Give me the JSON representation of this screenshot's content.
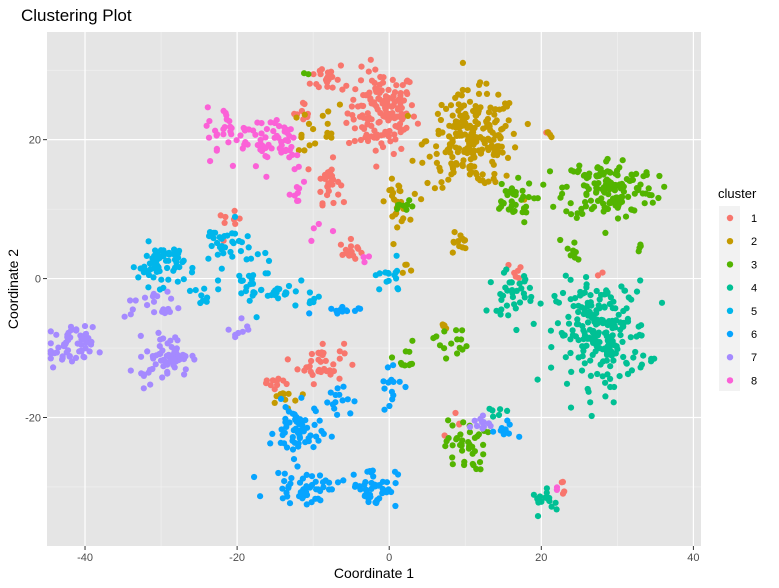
{
  "chart_data": {
    "type": "scatter",
    "title": "Clustering Plot",
    "xlabel": "Coordinate 1",
    "ylabel": "Coordinate 2",
    "xlim": [
      -45,
      41
    ],
    "ylim": [
      -38.5,
      35.5
    ],
    "x_ticks": [
      -40,
      -20,
      0,
      20,
      40
    ],
    "y_ticks": [
      -20,
      0,
      20
    ],
    "x_tick_labels": [
      "-40",
      "-20",
      "0",
      "20",
      "40"
    ],
    "y_tick_labels": [
      "-20",
      "0",
      "20"
    ],
    "grid": true,
    "background": "#e5e5e5",
    "legend": {
      "title": "cluster",
      "position": "right"
    },
    "series": [
      {
        "name": "1",
        "color": "#F8766D",
        "clusters": [
          {
            "center": [
              -1,
              24
            ],
            "spread": [
              3,
              4
            ],
            "n": 150
          },
          {
            "center": [
              -8,
              29
            ],
            "spread": [
              1.5,
              1.5
            ],
            "n": 20
          },
          {
            "center": [
              -8,
              14
            ],
            "spread": [
              1,
              2
            ],
            "n": 30
          },
          {
            "center": [
              -5,
              4
            ],
            "spread": [
              1,
              1
            ],
            "n": 15
          },
          {
            "center": [
              -9,
              -12
            ],
            "spread": [
              2,
              2
            ],
            "n": 35
          },
          {
            "center": [
              -11,
              24
            ],
            "spread": [
              1,
              1
            ],
            "n": 8
          },
          {
            "center": [
              -21,
              8
            ],
            "spread": [
              1,
              1
            ],
            "n": 8
          },
          {
            "center": [
              -15,
              -15
            ],
            "spread": [
              1.5,
              1
            ],
            "n": 10
          },
          {
            "center": [
              17,
              1
            ],
            "spread": [
              1,
              1
            ],
            "n": 6
          },
          {
            "center": [
              23,
              -29
            ],
            "spread": [
              0.5,
              1
            ],
            "n": 4
          },
          {
            "center": [
              8,
              -21
            ],
            "spread": [
              1,
              1
            ],
            "n": 4
          },
          {
            "center": [
              28,
              0.5
            ],
            "spread": [
              0.5,
              0.5
            ],
            "n": 2
          },
          {
            "center": [
              21,
              20.5
            ],
            "spread": [
              0.5,
              0.5
            ],
            "n": 2
          }
        ]
      },
      {
        "name": "2",
        "color": "#C49A00",
        "clusters": [
          {
            "center": [
              11,
              20
            ],
            "spread": [
              4,
              4.5
            ],
            "n": 220
          },
          {
            "center": [
              1,
              11
            ],
            "spread": [
              1,
              2
            ],
            "n": 25
          },
          {
            "center": [
              9,
              5
            ],
            "spread": [
              1,
              1.5
            ],
            "n": 12
          },
          {
            "center": [
              -11,
              21
            ],
            "spread": [
              1,
              2
            ],
            "n": 10
          },
          {
            "center": [
              -14,
              -17
            ],
            "spread": [
              1.5,
              1
            ],
            "n": 10
          },
          {
            "center": [
              -8,
              22
            ],
            "spread": [
              1,
              2
            ],
            "n": 8
          },
          {
            "center": [
              7,
              -7
            ],
            "spread": [
              0.5,
              1
            ],
            "n": 4
          },
          {
            "center": [
              2,
              1
            ],
            "spread": [
              0.8,
              0.8
            ],
            "n": 4
          },
          {
            "center": [
              21,
              20.5
            ],
            "spread": [
              0.5,
              0.5
            ],
            "n": 3
          }
        ]
      },
      {
        "name": "3",
        "color": "#53B400",
        "clusters": [
          {
            "center": [
              29,
              13
            ],
            "spread": [
              4,
              3
            ],
            "n": 150
          },
          {
            "center": [
              16,
              11
            ],
            "spread": [
              2,
              2
            ],
            "n": 35
          },
          {
            "center": [
              10,
              -24
            ],
            "spread": [
              1.8,
              2.5
            ],
            "n": 40
          },
          {
            "center": [
              8,
              -9
            ],
            "spread": [
              1.5,
              1.5
            ],
            "n": 15
          },
          {
            "center": [
              2,
              -12
            ],
            "spread": [
              1,
              2
            ],
            "n": 10
          },
          {
            "center": [
              24,
              4
            ],
            "spread": [
              1,
              1.5
            ],
            "n": 10
          },
          {
            "center": [
              2,
              10
            ],
            "spread": [
              1,
              0.8
            ],
            "n": 8
          },
          {
            "center": [
              -11,
              29.5
            ],
            "spread": [
              0.5,
              0.5
            ],
            "n": 2
          },
          {
            "center": [
              33,
              5
            ],
            "spread": [
              0.5,
              1
            ],
            "n": 4
          }
        ]
      },
      {
        "name": "4",
        "color": "#00C094",
        "clusters": [
          {
            "center": [
              28,
              -8
            ],
            "spread": [
              4,
              5
            ],
            "n": 220
          },
          {
            "center": [
              16,
              -2
            ],
            "spread": [
              2,
              2
            ],
            "n": 35
          },
          {
            "center": [
              21,
              -32
            ],
            "spread": [
              1.5,
              1
            ],
            "n": 15
          },
          {
            "center": [
              14,
              -19
            ],
            "spread": [
              1,
              1
            ],
            "n": 6
          }
        ]
      },
      {
        "name": "5",
        "color": "#00B6EB",
        "clusters": [
          {
            "center": [
              -30,
              2
            ],
            "spread": [
              2,
              2
            ],
            "n": 70
          },
          {
            "center": [
              -22,
              5
            ],
            "spread": [
              2,
              2
            ],
            "n": 30
          },
          {
            "center": [
              -18,
              0
            ],
            "spread": [
              2,
              3
            ],
            "n": 25
          },
          {
            "center": [
              -14,
              -2
            ],
            "spread": [
              2,
              1
            ],
            "n": 20
          },
          {
            "center": [
              0,
              0
            ],
            "spread": [
              1.5,
              1.5
            ],
            "n": 15
          },
          {
            "center": [
              -25,
              -3
            ],
            "spread": [
              2,
              2
            ],
            "n": 10
          },
          {
            "center": [
              -10,
              -3
            ],
            "spread": [
              1,
              1
            ],
            "n": 6
          }
        ]
      },
      {
        "name": "6",
        "color": "#06A4FF",
        "clusters": [
          {
            "center": [
              -12,
              -22
            ],
            "spread": [
              2,
              2.5
            ],
            "n": 60
          },
          {
            "center": [
              -11,
              -30
            ],
            "spread": [
              3,
              1.5
            ],
            "n": 50
          },
          {
            "center": [
              -2,
              -30
            ],
            "spread": [
              2,
              2
            ],
            "n": 45
          },
          {
            "center": [
              -7,
              -17
            ],
            "spread": [
              1.5,
              1.5
            ],
            "n": 15
          },
          {
            "center": [
              -7,
              -5
            ],
            "spread": [
              2,
              0.8
            ],
            "n": 12
          },
          {
            "center": [
              0,
              -15
            ],
            "spread": [
              1,
              3
            ],
            "n": 15
          },
          {
            "center": [
              15,
              -22
            ],
            "spread": [
              1,
              1
            ],
            "n": 10
          }
        ]
      },
      {
        "name": "7",
        "color": "#A58AFF",
        "clusters": [
          {
            "center": [
              -42,
              -10
            ],
            "spread": [
              2,
              2
            ],
            "n": 55
          },
          {
            "center": [
              -29,
              -11
            ],
            "spread": [
              2,
              2
            ],
            "n": 60
          },
          {
            "center": [
              -31,
              -4
            ],
            "spread": [
              2.5,
              1.5
            ],
            "n": 20
          },
          {
            "center": [
              -32,
              -14
            ],
            "spread": [
              1,
              1
            ],
            "n": 6
          },
          {
            "center": [
              -20,
              -7
            ],
            "spread": [
              1,
              1.5
            ],
            "n": 8
          },
          {
            "center": [
              12,
              -21
            ],
            "spread": [
              1,
              0.8
            ],
            "n": 12
          }
        ]
      },
      {
        "name": "8",
        "color": "#FB61D7",
        "clusters": [
          {
            "center": [
              -15,
              20
            ],
            "spread": [
              3,
              3
            ],
            "n": 55
          },
          {
            "center": [
              -21,
              21
            ],
            "spread": [
              2,
              2.5
            ],
            "n": 30
          },
          {
            "center": [
              -12,
              12
            ],
            "spread": [
              1,
              2
            ],
            "n": 8
          },
          {
            "center": [
              -9,
              7
            ],
            "spread": [
              1,
              1
            ],
            "n": 4
          },
          {
            "center": [
              -3,
              3
            ],
            "spread": [
              0.8,
              0.8
            ],
            "n": 3
          },
          {
            "center": [
              22,
              -30
            ],
            "spread": [
              0.5,
              0.5
            ],
            "n": 2
          }
        ]
      }
    ]
  }
}
